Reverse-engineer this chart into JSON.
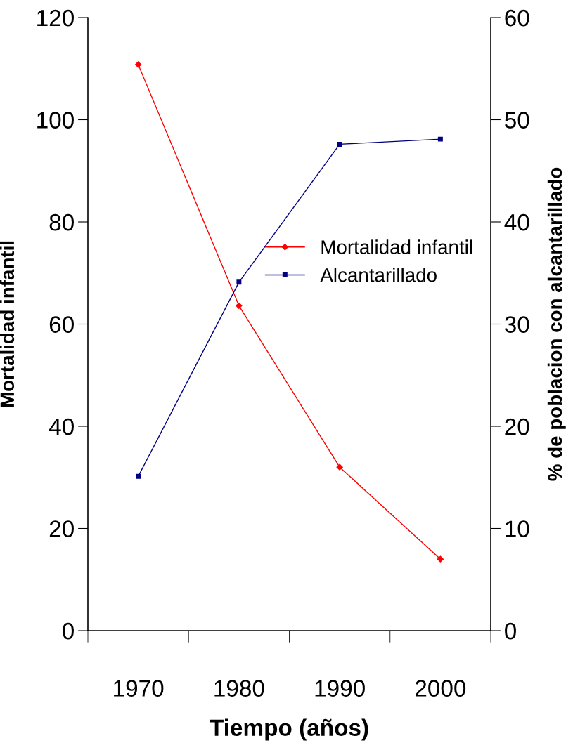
{
  "chart_data": {
    "type": "line",
    "xlabel": "Tiempo (años)",
    "ylabel": "Mortalidad infantil",
    "y2label": "% de poblacion con alcantarillado",
    "categories": [
      "1970",
      "1980",
      "1990",
      "2000"
    ],
    "series": [
      {
        "name": "Mortalidad infantil",
        "color": "#ff0000",
        "values": [
          110.8,
          63.6,
          32.0,
          14.0
        ],
        "marker": "diamond"
      },
      {
        "name": "Alcantarillado",
        "color": "#000080",
        "values": [
          15.1,
          34.1,
          47.6,
          48.1
        ],
        "axis": "y2",
        "marker": "square"
      }
    ],
    "ylim": [
      0,
      120
    ],
    "yticks": [
      0,
      20,
      40,
      60,
      80,
      100,
      120
    ],
    "y2lim": [
      0,
      60
    ],
    "y2ticks": [
      0,
      10,
      20,
      30,
      40,
      50,
      60
    ],
    "grid": false,
    "legend": "center right",
    "line_style": "solid"
  }
}
